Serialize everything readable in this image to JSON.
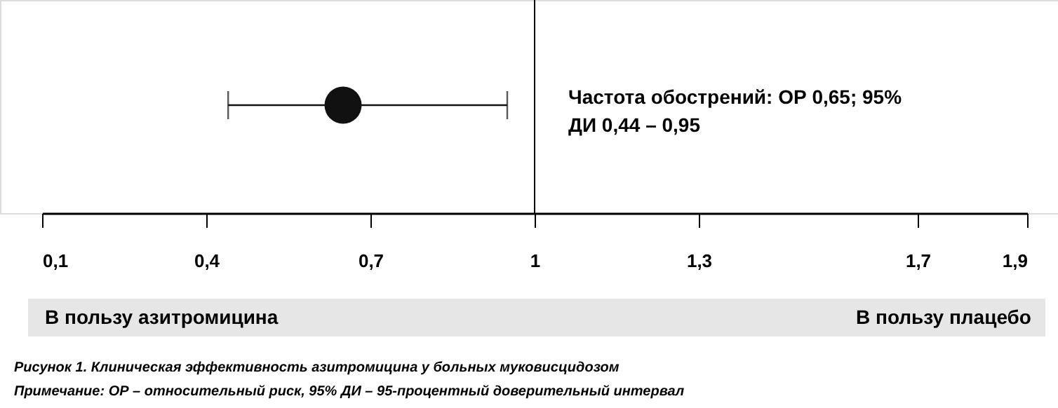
{
  "chart_data": {
    "type": "scatter",
    "orientation": "horizontal",
    "categories": [
      null
    ],
    "values": [
      0.65
    ],
    "errors": [
      [
        0.44,
        0.95
      ]
    ],
    "color": "#111111",
    "marker": "circle",
    "xlim": [
      0.1,
      1.9
    ],
    "xticks": [
      {
        "value": 0.1,
        "label": "0,1"
      },
      {
        "value": 0.4,
        "label": "0,4"
      },
      {
        "value": 0.7,
        "label": "0,7"
      },
      {
        "value": 1,
        "label": "1"
      },
      {
        "value": 1.3,
        "label": "1,3"
      },
      {
        "value": 1.7,
        "label": "1,7"
      },
      {
        "value": 1.9,
        "label": "1,9"
      }
    ],
    "ref_lines": [
      {
        "axis": "x",
        "value": 1,
        "label": null,
        "color": "#000000"
      }
    ],
    "grid": false,
    "annotations": [
      "Частота обострений: ОР 0,65; 95%\nДИ 0,44 – 0,95",
      "В пользу азитромицина",
      "В пользу плацебо",
      "Рисунок 1. Клиническая эффективность азитромицина у больных муковисцидозом",
      "Примечание: ОР – относительный риск, 95% ДИ – 95-процентный доверительный интервал"
    ]
  }
}
